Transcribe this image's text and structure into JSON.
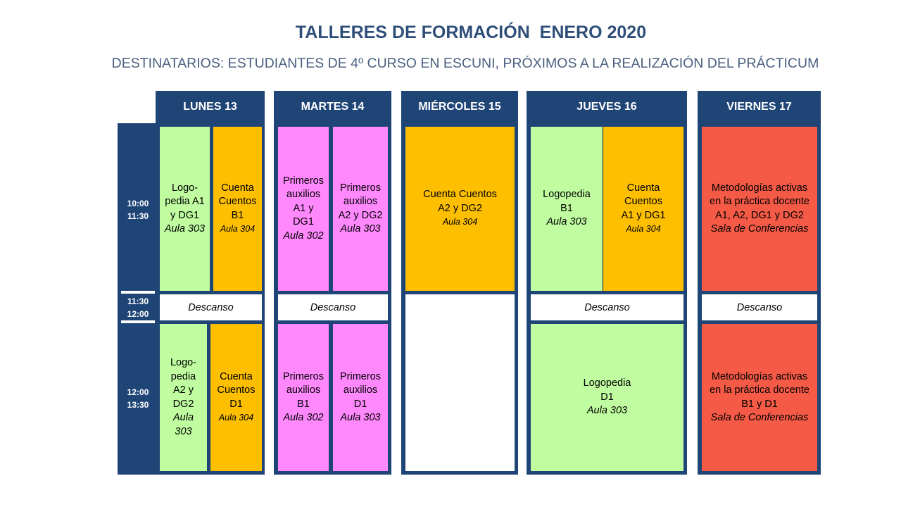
{
  "header": {
    "title": "TALLERES DE FORMACIÓN  ENERO 2020",
    "subtitle": "DESTINATARIOS: ESTUDIANTES DE 4º CURSO EN ESCUNI, PRÓXIMOS A LA REALIZACIÓN DEL PRÁCTICUM"
  },
  "colors": {
    "navy": "#1f4577",
    "green": "#c0fda0",
    "orange": "#fdbf00",
    "pink": "#ff88fd",
    "red": "#f45a46"
  },
  "times": {
    "morning": {
      "start": "10:00",
      "end": "11:30"
    },
    "break": {
      "start": "11:30",
      "end": "12:00"
    },
    "midday": {
      "start": "12:00",
      "end": "13:30"
    }
  },
  "days": [
    {
      "name": "LUNES 13",
      "morning": [
        {
          "lines": [
            "Logo-",
            "pedia A1",
            "y DG1"
          ],
          "room": "Aula 303"
        },
        {
          "lines": [
            "Cuenta",
            "Cuentos",
            "B1"
          ],
          "room": "Aula 304"
        }
      ],
      "break": "Descanso",
      "midday": [
        {
          "lines": [
            "Logo-",
            "pedia",
            "A2 y",
            "DG2"
          ],
          "room": [
            "Aula",
            "303"
          ]
        },
        {
          "lines": [
            "Cuenta",
            "Cuentos",
            "D1"
          ],
          "room": "Aula 304"
        }
      ]
    },
    {
      "name": "MARTES 14",
      "morning": [
        {
          "lines": [
            "Primeros",
            "auxilios",
            "A1 y",
            "DG1"
          ],
          "room": "Aula 302"
        },
        {
          "lines": [
            "Primeros",
            "auxilios",
            "A2 y DG2"
          ],
          "room": "Aula 303"
        }
      ],
      "break": "Descanso",
      "midday": [
        {
          "lines": [
            "Primeros",
            "auxilios",
            "B1"
          ],
          "room": "Aula 302"
        },
        {
          "lines": [
            "Primeros",
            "auxilios",
            "D1"
          ],
          "room": "Aula 303"
        }
      ]
    },
    {
      "name": "MIÉRCOLES 15",
      "morning": [
        {
          "lines": [
            "Cuenta Cuentos",
            "A2 y DG2"
          ],
          "room": "Aula 304"
        }
      ],
      "break": "",
      "midday": []
    },
    {
      "name": "JUEVES 16",
      "morning": [
        {
          "lines": [
            "Logopedia",
            "B1"
          ],
          "room": "Aula 303"
        },
        {
          "lines": [
            "Cuenta",
            "Cuentos",
            "A1 y DG1"
          ],
          "room": "Aula 304"
        }
      ],
      "break": "Descanso",
      "midday": [
        {
          "lines": [
            "Logopedia",
            "D1"
          ],
          "room": "Aula 303"
        }
      ]
    },
    {
      "name": "VIERNES 17",
      "morning": [
        {
          "lines": [
            "Metodologías activas",
            "en la práctica docente",
            "A1, A2, DG1 y DG2"
          ],
          "room": "Sala de Conferencias"
        }
      ],
      "break": "Descanso",
      "midday": [
        {
          "lines": [
            "Metodologías activas",
            "en la práctica docente",
            "B1 y D1"
          ],
          "room": "Sala de Conferencias"
        }
      ]
    }
  ]
}
